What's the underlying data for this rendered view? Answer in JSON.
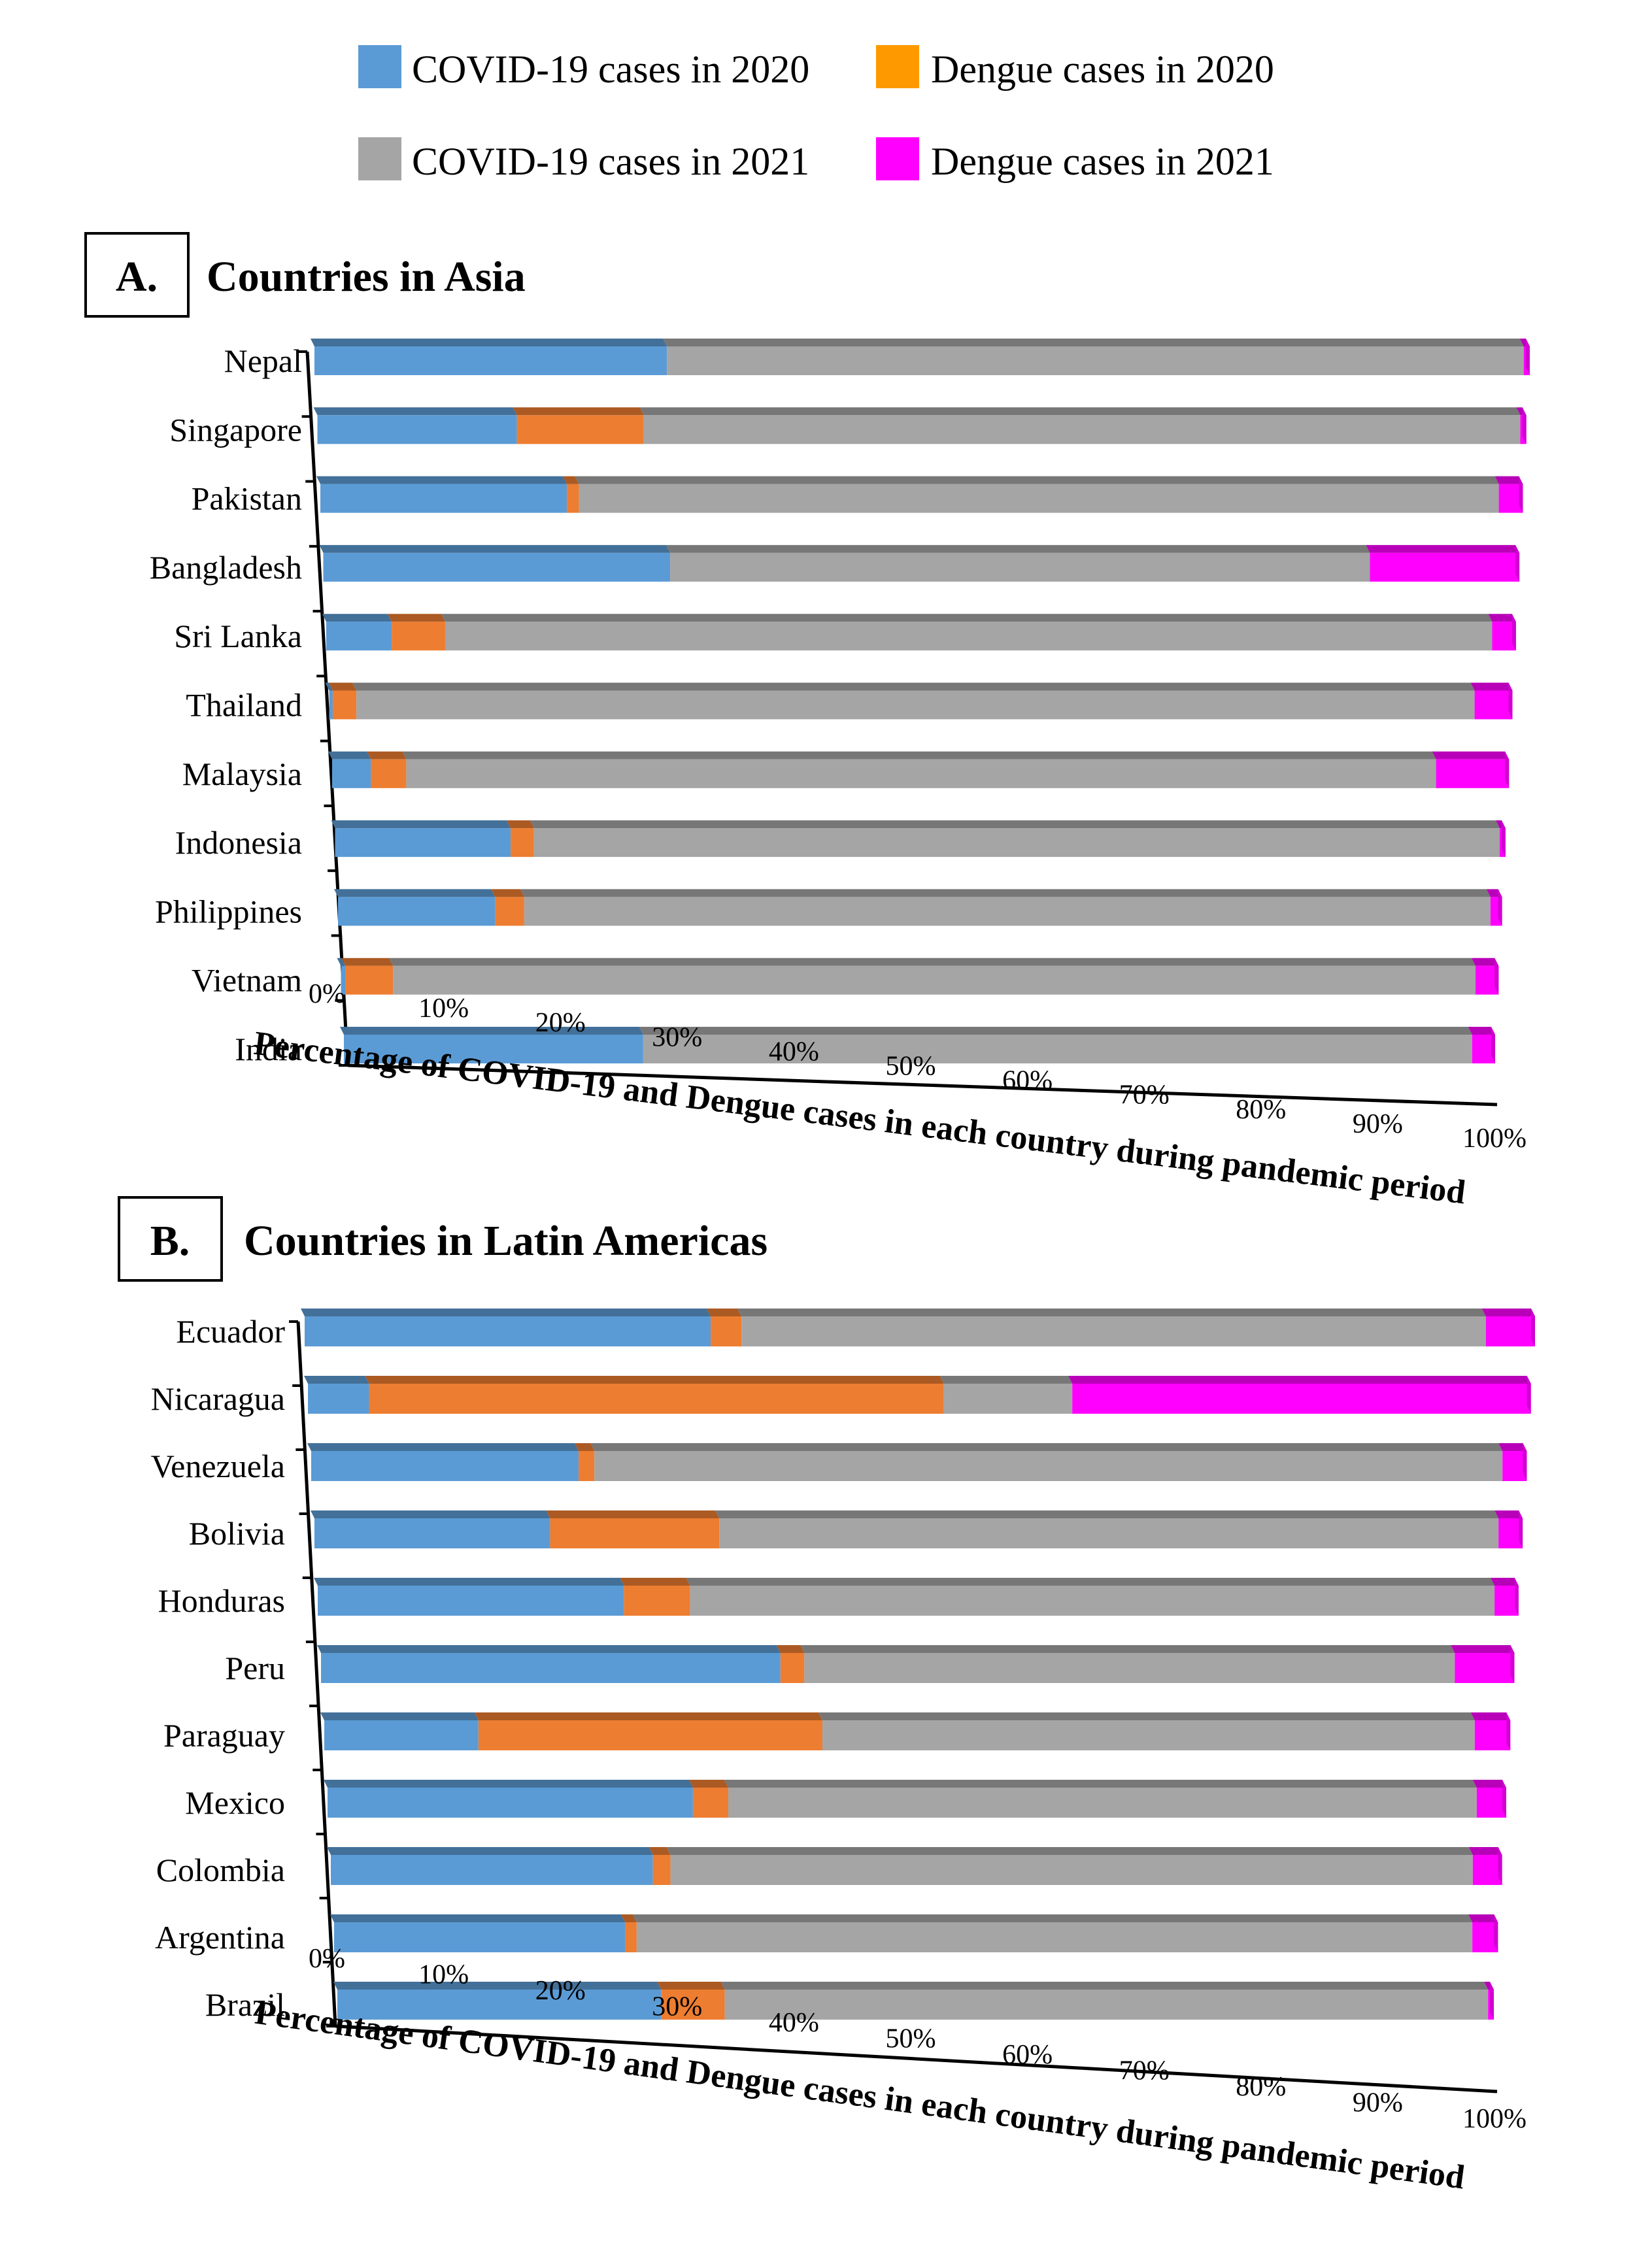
{
  "legend": [
    {
      "label": "COVID-19 cases in 2020",
      "color": "#5b9bd5"
    },
    {
      "label": "Dengue cases in 2020",
      "color": "#ff9900"
    },
    {
      "label": "COVID-19 cases in 2021",
      "color": "#a5a5a5"
    },
    {
      "label": "Dengue  cases in 2021",
      "color": "#ff00ff"
    }
  ],
  "segment_colors": [
    "#5b9bd5",
    "#ed7d31",
    "#a5a5a5",
    "#ff00ff"
  ],
  "chart_data": [
    {
      "type": "bar",
      "stacked": "percent",
      "orientation": "horizontal",
      "panel_letter": "A.",
      "title": "Countries in Asia",
      "xlabel": "Percentage of COVID-19 and Dengue cases in each country during pandemic period",
      "ylabel": "",
      "xlim": [
        0,
        100
      ],
      "x_ticks": [
        "0%",
        "10%",
        "20%",
        "30%",
        "40%",
        "50%",
        "60%",
        "70%",
        "80%",
        "90%",
        "100%"
      ],
      "categories": [
        "Nepal",
        "Singapore",
        "Pakistan",
        "Bangladesh",
        "Sri Lanka",
        "Thailand",
        "Malaysia",
        "Indonesia",
        "Philippines",
        "Vietnam",
        "India"
      ],
      "series": [
        {
          "name": "COVID-19 cases in 2020",
          "values": [
            29,
            16.5,
            20.5,
            29,
            5.5,
            0.3,
            3.3,
            15,
            13.5,
            0.4,
            26
          ]
        },
        {
          "name": "Dengue cases in 2020",
          "values": [
            0,
            10.5,
            1,
            0,
            4.5,
            2,
            3,
            2,
            2.5,
            4.1,
            0
          ]
        },
        {
          "name": "COVID-19 cases in 2021",
          "values": [
            70.5,
            72.5,
            76.5,
            58.5,
            88,
            94.5,
            87.5,
            82.5,
            83,
            93.5,
            72
          ]
        },
        {
          "name": "Dengue  cases in 2021",
          "values": [
            0.5,
            0.5,
            2,
            12.5,
            2,
            3.2,
            6.2,
            0.5,
            1,
            2,
            2
          ]
        }
      ]
    },
    {
      "type": "bar",
      "stacked": "percent",
      "orientation": "horizontal",
      "panel_letter": "B.",
      "title": "Countries in Latin Americas",
      "xlabel": "Percentage of COVID-19 and Dengue cases in each country during pandemic period",
      "ylabel": "",
      "xlim": [
        0,
        100
      ],
      "x_ticks": [
        "0%",
        "10%",
        "20%",
        "30%",
        "40%",
        "50%",
        "60%",
        "70%",
        "80%",
        "90%",
        "100%"
      ],
      "categories": [
        "Ecuador",
        "Nicaragua",
        "Venezuela",
        "Bolivia",
        "Honduras",
        "Peru",
        "Paraguay",
        "Mexico",
        "Colombia",
        "Argentina",
        "Brazil"
      ],
      "series": [
        {
          "name": "COVID-19 cases in 2020",
          "values": [
            33,
            5,
            22,
            19.5,
            25.5,
            38.5,
            13,
            31,
            27.5,
            25,
            28
          ]
        },
        {
          "name": "Dengue cases in 2020",
          "values": [
            2.5,
            47,
            1.3,
            14,
            5.5,
            2,
            29,
            3,
            1.5,
            1,
            5.5
          ]
        },
        {
          "name": "COVID-19 cases in 2021",
          "values": [
            60.5,
            10.5,
            74.7,
            64.5,
            67,
            54.5,
            55,
            63.5,
            68.5,
            71.8,
            66
          ]
        },
        {
          "name": "Dengue  cases in 2021",
          "values": [
            4,
            37.5,
            2,
            2,
            2,
            5,
            3,
            2.5,
            2.5,
            2.2,
            0.5
          ]
        }
      ]
    }
  ]
}
